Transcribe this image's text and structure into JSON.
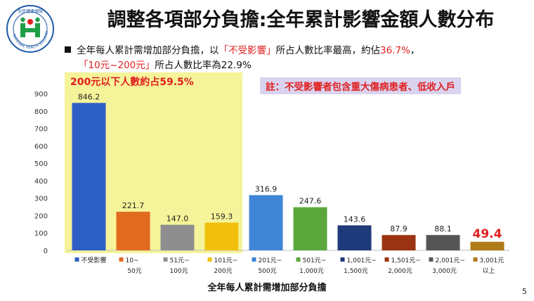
{
  "logo": {
    "text_top": "全民健康保險",
    "text_ring": "NATIONAL HEALTH INSURANCE",
    "color": "#1f9e48"
  },
  "slide": {
    "title": "調整各項部分負擔:全年累計影響金額人數分布",
    "bullet_a": "全年每人累計需增加部分負擔，以",
    "bullet_b": "「不受影響」",
    "bullet_c": "所占人數比率最高，約佔",
    "bullet_d": "36.7%",
    "bullet_e": "，",
    "line2_a": "「10元~200元」",
    "line2_b": "所占人數比率為22.9%",
    "highlight_label": "200元以下人數約占59.5%",
    "note": "註：不受影響者包含重大傷病患者、低收入戶",
    "page_number": "5"
  },
  "chart_data": {
    "type": "bar",
    "categories": [
      [
        "不受影響",
        ""
      ],
      [
        "10~",
        "50元"
      ],
      [
        "51元~",
        "100元"
      ],
      [
        "101元~",
        "200元"
      ],
      [
        "201元~",
        "500元"
      ],
      [
        "501元~",
        "1,000元"
      ],
      [
        "1,001元~",
        "1,500元"
      ],
      [
        "1,501元~",
        "2,000元"
      ],
      [
        "2,001元~",
        "3,000元"
      ],
      [
        "3,001元",
        "以上"
      ]
    ],
    "values": [
      846.2,
      221.7,
      147.0,
      159.3,
      316.9,
      247.6,
      143.6,
      87.9,
      88.1,
      49.4
    ],
    "value_labels": [
      "846.2",
      "221.7",
      "147.0",
      "159.3",
      "316.9",
      "247.6",
      "143.6",
      "87.9",
      "88.1",
      "49.4"
    ],
    "colors": [
      "#2e5fc4",
      "#e26a1e",
      "#8e8e8e",
      "#f2c00c",
      "#3f86d6",
      "#5aa83c",
      "#1e3a7a",
      "#9a3412",
      "#555555",
      "#b07c1a"
    ],
    "highlight_value_color": "#e02020",
    "xlabel": "全年每人累計需增加部分負擔",
    "ylabel": "",
    "ylim": [
      0,
      900
    ],
    "yticks": [
      0,
      100,
      200,
      300,
      400,
      500,
      600,
      700,
      800,
      900
    ],
    "grid": false
  }
}
